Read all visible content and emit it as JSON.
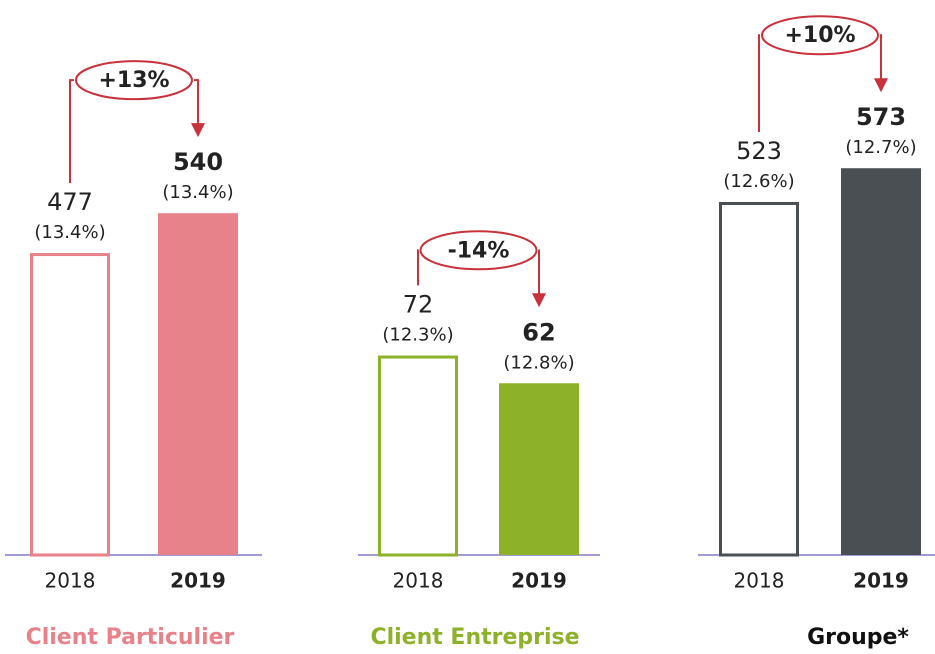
{
  "chart_data": [
    {
      "type": "bar",
      "title": "Client Particulier",
      "color": "#e8828a",
      "categories": [
        "2018",
        "2019"
      ],
      "values": [
        477,
        540
      ],
      "shares": [
        13.4,
        13.4
      ],
      "share_labels": [
        "(13.4%)",
        "(13.4%)"
      ],
      "change": 13,
      "change_label": "+13%"
    },
    {
      "type": "bar",
      "title": "Client Entreprise",
      "color": "#8db22a",
      "categories": [
        "2018",
        "2019"
      ],
      "values": [
        72,
        62
      ],
      "shares": [
        12.3,
        12.8
      ],
      "share_labels": [
        "(12.3%)",
        "(12.8%)"
      ],
      "change": -14,
      "change_label": "-14%"
    },
    {
      "type": "bar",
      "title": "Groupe*",
      "color": "#4a4f53",
      "categories": [
        "2018",
        "2019"
      ],
      "values": [
        523,
        573
      ],
      "shares": [
        12.6,
        12.7
      ],
      "share_labels": [
        "(12.6%)",
        "(12.7%)"
      ],
      "change": 10,
      "change_label": "+10%"
    }
  ]
}
